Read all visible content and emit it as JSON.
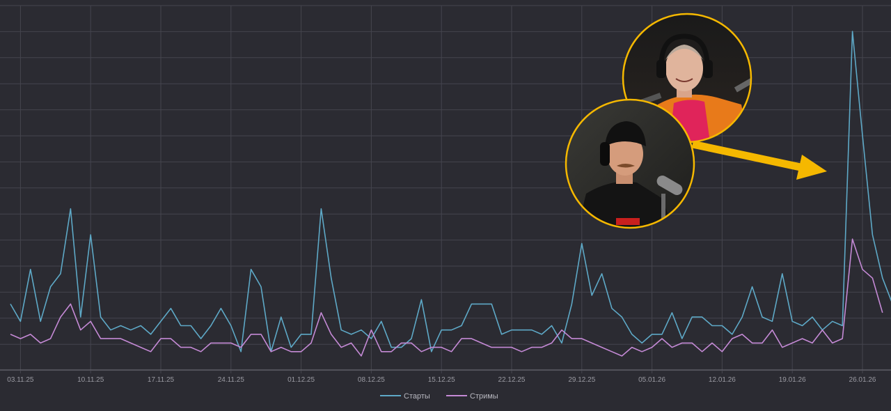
{
  "colors": {
    "background": "#2b2b32",
    "grid": "#45454e",
    "starts": "#5ea9c7",
    "streams": "#c58ad6",
    "highlight": "#f5b800",
    "arrow": "#f5b800"
  },
  "chart_data": {
    "type": "line",
    "grid": true,
    "legend_position": "bottom-center",
    "tick_labels": [
      "03.11.25",
      "10.11.25",
      "17.11.25",
      "24.11.25",
      "01.12.25",
      "08.12.25",
      "15.12.25",
      "22.12.25",
      "29.12.25",
      "05.01.26",
      "12.01.26",
      "19.01.26",
      "26.01.26"
    ],
    "x_start_label": "02.11.25",
    "series": [
      {
        "name": "Старты",
        "key": "starts",
        "values": [
          12,
          8,
          20,
          8,
          16,
          19,
          34,
          9,
          28,
          9,
          6,
          7,
          6,
          7,
          5,
          8,
          11,
          7,
          7,
          4,
          7,
          11,
          7,
          1,
          20,
          16,
          1,
          9,
          2,
          5,
          5,
          34,
          18,
          6,
          5,
          6,
          4,
          8,
          2,
          2,
          4,
          13,
          1,
          6,
          6,
          7,
          12,
          12,
          12,
          5,
          6,
          6,
          6,
          5,
          7,
          3,
          12,
          26,
          14,
          19,
          11,
          9,
          5,
          3,
          5,
          5,
          10,
          4,
          9,
          9,
          7,
          7,
          5,
          9,
          16,
          9,
          8,
          19,
          8,
          7,
          9,
          6,
          8,
          7,
          75,
          51,
          28,
          18,
          12
        ]
      },
      {
        "name": "Стримы",
        "key": "streams",
        "values": [
          5,
          4,
          5,
          3,
          4,
          9,
          12,
          6,
          8,
          4,
          4,
          4,
          3,
          2,
          1,
          4,
          4,
          2,
          2,
          1,
          3,
          3,
          3,
          2,
          5,
          5,
          1,
          2,
          1,
          1,
          3,
          10,
          5,
          2,
          3,
          0,
          6,
          1,
          1,
          3,
          3,
          1,
          2,
          2,
          1,
          4,
          4,
          3,
          2,
          2,
          2,
          1,
          2,
          2,
          3,
          6,
          4,
          4,
          3,
          2,
          1,
          0,
          2,
          1,
          2,
          4,
          2,
          3,
          3,
          1,
          3,
          1,
          4,
          5,
          3,
          3,
          6,
          2,
          3,
          4,
          3,
          6,
          3,
          4,
          27,
          20,
          18,
          10
        ]
      }
    ]
  },
  "legend": {
    "items": [
      {
        "label": "Старты"
      },
      {
        "label": "Стримы"
      }
    ]
  },
  "photos": [
    {
      "name": "photo-man-orange-vest",
      "description_icon": "person-headphones-icon"
    },
    {
      "name": "photo-man-black-cap",
      "description_icon": "person-headphones-icon"
    }
  ]
}
